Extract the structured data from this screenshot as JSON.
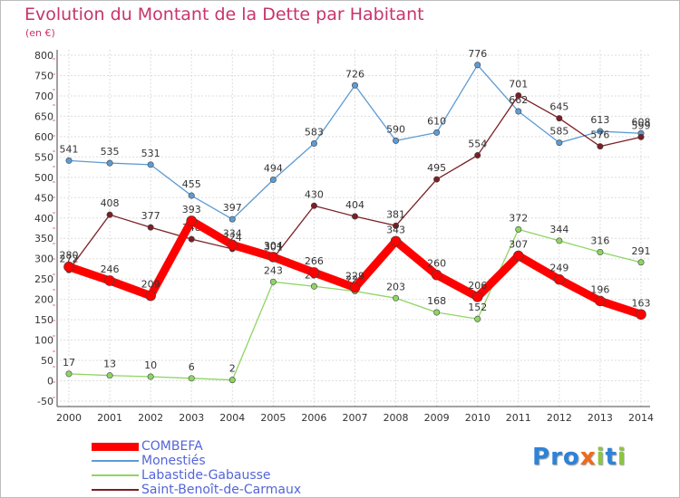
{
  "title": "Evolution du Montant de la Dette par Habitant",
  "unit": "(en €)",
  "brand": {
    "text": "Proxiti",
    "colors": [
      "#2c83d8",
      "#2c83d8",
      "#2c83d8",
      "#ef6a1c",
      "#8bc63e",
      "#2c83d8",
      "#8bc63e"
    ]
  },
  "chart_data": {
    "type": "line",
    "x": [
      2000,
      2001,
      2002,
      2003,
      2004,
      2005,
      2006,
      2007,
      2008,
      2009,
      2010,
      2011,
      2012,
      2013,
      2014
    ],
    "ylim": [
      -50,
      800
    ],
    "yticks": [
      -50,
      0,
      50,
      100,
      150,
      200,
      250,
      300,
      350,
      400,
      450,
      500,
      550,
      600,
      650,
      700,
      750,
      800
    ],
    "grid": true,
    "legend_position": "bottom-left",
    "series": [
      {
        "name": "Monestiés",
        "color": "#5d9bd3",
        "values": [
          541,
          535,
          531,
          455,
          397,
          494,
          583,
          726,
          590,
          610,
          776,
          662,
          585,
          613,
          608
        ],
        "labels": [
          "541",
          "535",
          "531",
          "455",
          "397",
          "494",
          "583",
          "726",
          "590",
          "610",
          "776",
          "662",
          "585",
          "613",
          "608"
        ]
      },
      {
        "name": "Labastide-Gabausse",
        "color": "#8ed563",
        "values": [
          17,
          13,
          10,
          6,
          2,
          243,
          232,
          220,
          203,
          168,
          152,
          372,
          344,
          316,
          291
        ],
        "labels": [
          "17",
          "13",
          "10",
          "6",
          "2",
          "243",
          "232",
          "220",
          "203",
          "168",
          "152",
          "372",
          "344",
          "316",
          "291"
        ]
      },
      {
        "name": "Saint-Benoît-de-Carmaux",
        "color": "#7b1e25",
        "values": [
          272,
          408,
          377,
          348,
          324,
          301,
          430,
          404,
          381,
          495,
          554,
          701,
          645,
          576,
          599
        ],
        "labels": [
          "272",
          "408",
          "377",
          "348",
          "324",
          "301",
          "430",
          "404",
          "381",
          "495",
          "554",
          "701",
          "645",
          "576",
          "599"
        ]
      },
      {
        "name": "COMBEFA",
        "color": "#ff0000",
        "values": [
          280,
          246,
          209,
          393,
          334,
          304,
          266,
          229,
          343,
          260,
          206,
          307,
          249,
          196,
          163
        ],
        "labels": [
          "280",
          "246",
          "209",
          "393",
          "334",
          "304",
          "266",
          "229",
          "343",
          "260",
          "206",
          "307",
          "249",
          "196",
          "163"
        ]
      }
    ],
    "legend": [
      {
        "name": "COMBEFA",
        "color": "#ff0000"
      },
      {
        "name": "Monestiés",
        "color": "#5d9bd3"
      },
      {
        "name": "Labastide-Gabausse",
        "color": "#8ed563"
      },
      {
        "name": "Saint-Benoît-de-Carmaux",
        "color": "#7b1e25"
      }
    ]
  }
}
